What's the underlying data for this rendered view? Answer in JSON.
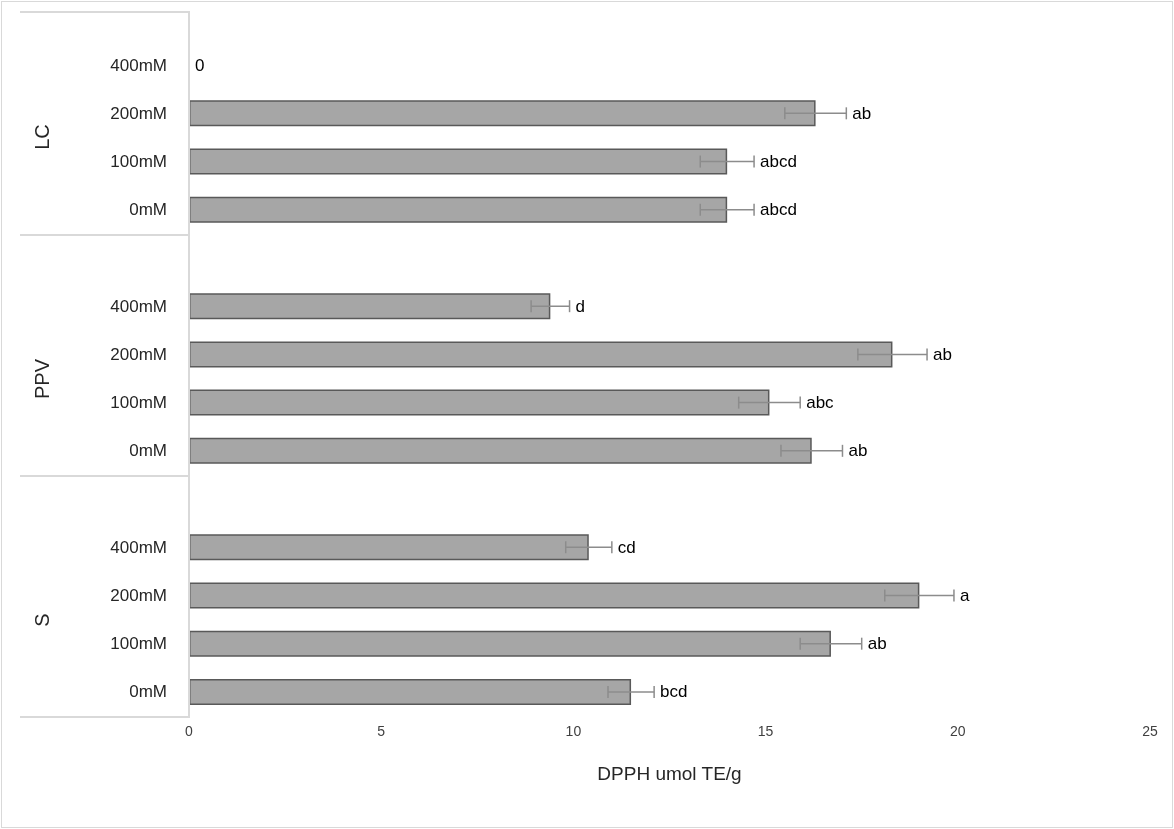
{
  "chart_data": {
    "type": "bar",
    "orientation": "horizontal",
    "xlabel": "DPPH umol TE/g",
    "categories": [
      "400mM",
      "200mM",
      "100mM",
      "0mM",
      null,
      "400mM",
      "200mM",
      "100mM",
      "0mM",
      null,
      "400mM",
      "200mM",
      "100mM",
      "0mM"
    ],
    "annotations": [
      "LC",
      "PPV",
      "S"
    ],
    "series": [
      {
        "color": "#a6a6a6",
        "values": [
          0,
          16.3,
          14.0,
          14.0,
          null,
          9.4,
          18.3,
          15.1,
          16.2,
          null,
          10.4,
          19.0,
          16.7,
          11.5
        ],
        "errors": [
          null,
          0.8,
          0.7,
          0.7,
          null,
          0.5,
          0.9,
          0.8,
          0.8,
          null,
          0.6,
          0.9,
          0.8,
          0.6
        ],
        "value_labels": [
          "0",
          "ab",
          "abcd",
          "abcd",
          null,
          "d",
          "ab",
          "abc",
          "ab",
          null,
          "cd",
          "a",
          "ab",
          "bcd"
        ]
      }
    ],
    "xlim": [
      0,
      25
    ],
    "xticks": [
      0,
      5,
      10,
      15,
      20,
      25
    ],
    "grid": false
  }
}
